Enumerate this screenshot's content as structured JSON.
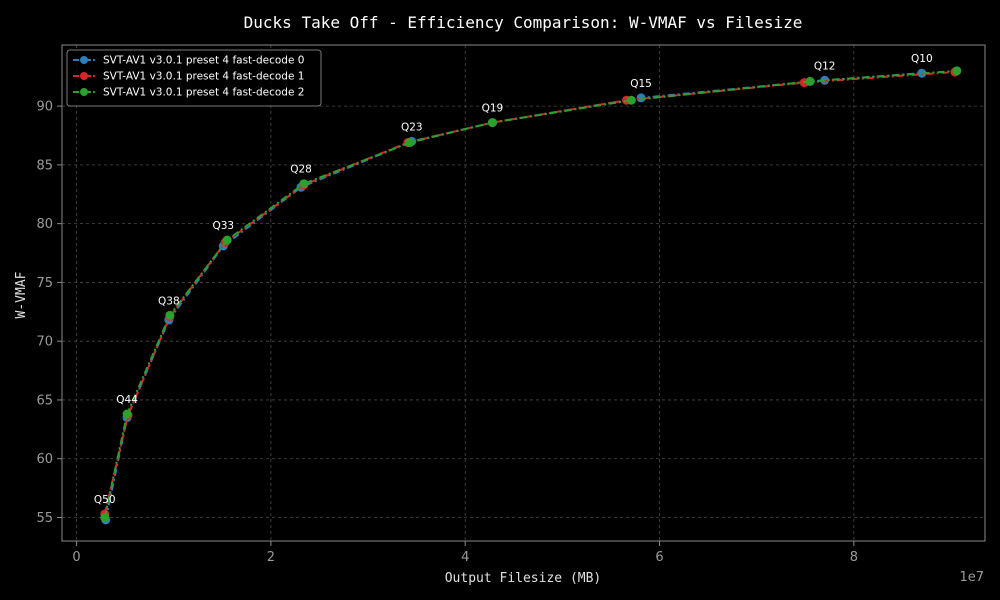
{
  "chart_data": {
    "type": "line",
    "title": "Ducks Take Off - Efficiency Comparison: W-VMAF vs Filesize",
    "xlabel": "Output Filesize (MB)",
    "ylabel": "W-VMAF",
    "x_offset_label": "1e7",
    "x_scale_factor": 10000000,
    "xlim": [
      -0.15,
      9.35
    ],
    "ylim": [
      53,
      95.2
    ],
    "x_ticks": [
      0,
      2,
      4,
      6,
      8
    ],
    "x_tick_labels": [
      "0",
      "2",
      "4",
      "6",
      "8"
    ],
    "y_ticks": [
      55,
      60,
      65,
      70,
      75,
      80,
      85,
      90
    ],
    "y_tick_labels": [
      "55",
      "60",
      "65",
      "70",
      "75",
      "80",
      "85",
      "90"
    ],
    "grid": true,
    "legend_position": "top-left",
    "series": [
      {
        "name": "SVT-AV1 v3.0.1 preset 4 fast-decode 0",
        "color": "#2e7fb8",
        "x": [
          0.3,
          0.52,
          0.95,
          1.51,
          2.31,
          3.45,
          4.28,
          5.81,
          7.7,
          8.7
        ],
        "y": [
          54.8,
          63.5,
          71.8,
          78.1,
          83.1,
          87.0,
          88.6,
          90.7,
          92.2,
          92.8
        ]
      },
      {
        "name": "SVT-AV1 v3.0.1 preset 4 fast-decode 1",
        "color": "#d62728",
        "x": [
          0.29,
          0.53,
          0.96,
          1.53,
          2.34,
          3.41,
          4.28,
          5.66,
          7.49,
          9.04
        ],
        "y": [
          55.3,
          63.7,
          72.1,
          78.4,
          83.3,
          86.9,
          88.6,
          90.5,
          92.0,
          92.9
        ]
      },
      {
        "name": "SVT-AV1 v3.0.1 preset 4 fast-decode 2",
        "color": "#2ca02c",
        "x": [
          0.29,
          0.52,
          0.96,
          1.55,
          2.34,
          3.43,
          4.28,
          5.71,
          7.55,
          9.06
        ],
        "y": [
          55.0,
          63.8,
          72.2,
          78.6,
          83.4,
          86.9,
          88.6,
          90.5,
          92.1,
          93.0
        ]
      }
    ],
    "annotations": [
      {
        "text": "Q50",
        "x": 0.29,
        "y": 55.3
      },
      {
        "text": "Q44",
        "x": 0.52,
        "y": 63.8
      },
      {
        "text": "Q38",
        "x": 0.95,
        "y": 72.2
      },
      {
        "text": "Q33",
        "x": 1.51,
        "y": 78.6
      },
      {
        "text": "Q28",
        "x": 2.31,
        "y": 83.4
      },
      {
        "text": "Q23",
        "x": 3.45,
        "y": 87.0
      },
      {
        "text": "Q19",
        "x": 4.28,
        "y": 88.6
      },
      {
        "text": "Q15",
        "x": 5.81,
        "y": 90.7
      },
      {
        "text": "Q12",
        "x": 7.7,
        "y": 92.2
      },
      {
        "text": "Q10",
        "x": 8.7,
        "y": 92.8
      }
    ]
  }
}
